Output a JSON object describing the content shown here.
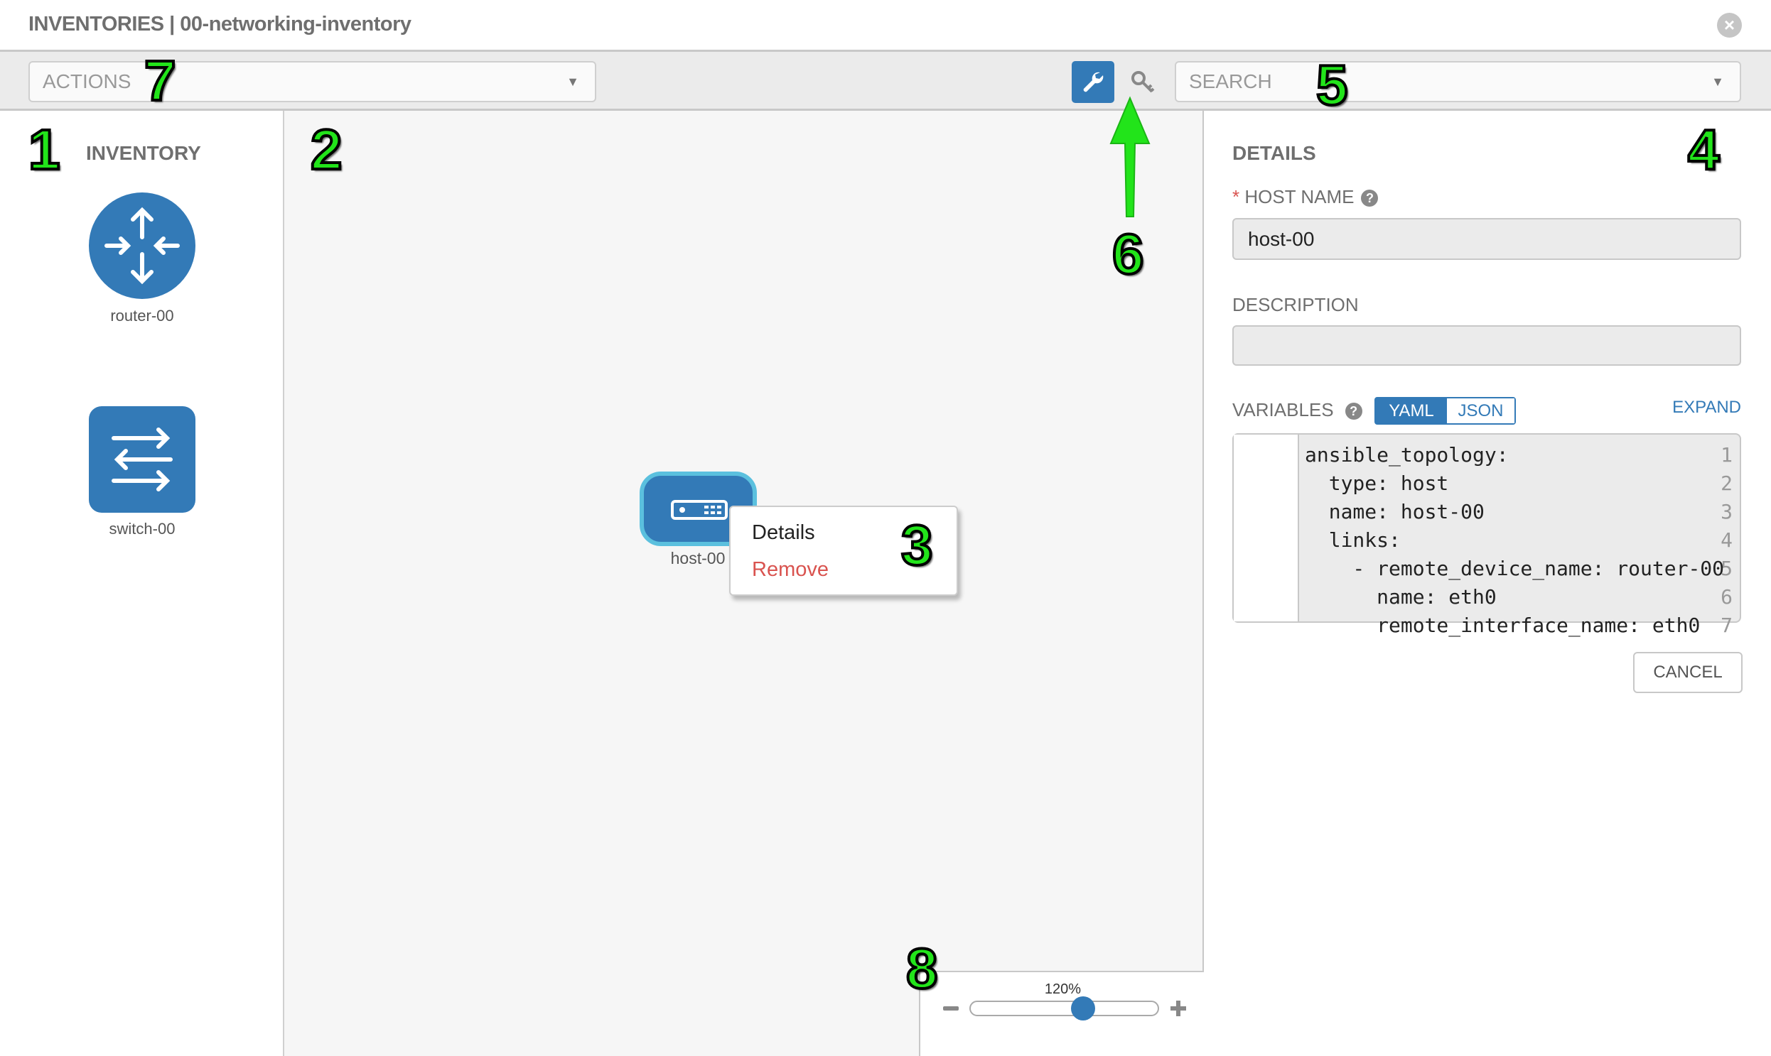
{
  "header": {
    "title": "INVENTORIES | 00-networking-inventory",
    "close_icon": "close-circle-icon"
  },
  "toolbar": {
    "actions_placeholder": "ACTIONS",
    "search_placeholder": "SEARCH",
    "wrench_icon": "wrench-icon",
    "key_icon": "key-icon",
    "accent": "#337ab7"
  },
  "inventory": {
    "title": "INVENTORY",
    "items": [
      {
        "label": "router-00",
        "icon": "router-icon"
      },
      {
        "label": "switch-00",
        "icon": "switch-icon"
      }
    ]
  },
  "canvas": {
    "node": {
      "label": "host-00",
      "icon": "host-icon"
    },
    "context_menu": {
      "items": [
        "Details",
        "Remove"
      ]
    },
    "zoom": {
      "label": "120%",
      "value_percent": 120,
      "slider_fraction": 0.6
    }
  },
  "details": {
    "title": "DETAILS",
    "host_name_label": "HOST NAME",
    "required_mark": "*",
    "host_name_value": "host-00",
    "description_label": "DESCRIPTION",
    "description_value": "",
    "variables_label": "VARIABLES",
    "yaml": "YAML",
    "json": "JSON",
    "selected_format": "YAML",
    "expand": "EXPAND",
    "cancel": "CANCEL",
    "code_lines": [
      {
        "n": "1",
        "t": "ansible_topology:"
      },
      {
        "n": "2",
        "t": "  type: host"
      },
      {
        "n": "3",
        "t": "  name: host-00"
      },
      {
        "n": "4",
        "t": "  links:"
      },
      {
        "n": "5",
        "t": "    - remote_device_name: router-00"
      },
      {
        "n": "6",
        "t": "      name: eth0"
      },
      {
        "n": "7",
        "t": "      remote_interface_name: eth0"
      }
    ]
  },
  "annotations": [
    "1",
    "2",
    "3",
    "4",
    "5",
    "6",
    "7",
    "8"
  ]
}
